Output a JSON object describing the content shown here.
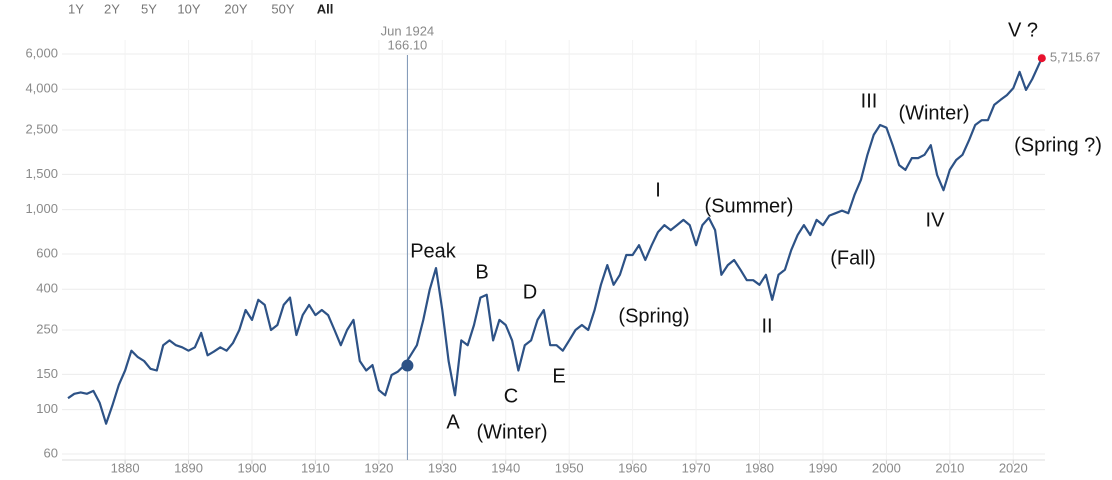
{
  "chart_data": {
    "type": "line",
    "range_buttons": [
      "1Y",
      "2Y",
      "5Y",
      "10Y",
      "20Y",
      "50Y",
      "All"
    ],
    "active_range": 6,
    "log_scale": true,
    "grid": true,
    "color": "#2d5286",
    "xlim": [
      1871,
      2025
    ],
    "xticks": [
      1880,
      1890,
      1900,
      1910,
      1920,
      1930,
      1940,
      1950,
      1960,
      1970,
      1980,
      1990,
      2000,
      2010,
      2020
    ],
    "ylim": [
      60,
      6000
    ],
    "yticks": [
      60,
      100,
      150,
      250,
      400,
      600,
      {
        "value": 1000,
        "label": "1,000"
      },
      {
        "value": 1500,
        "label": "1,500"
      },
      {
        "value": 2500,
        "label": "2,500"
      },
      {
        "value": 4000,
        "label": "4,000"
      },
      {
        "value": 6000,
        "label": "6,000"
      }
    ],
    "x": [
      1871,
      1872,
      1873,
      1874,
      1875,
      1876,
      1877,
      1878,
      1879,
      1880,
      1881,
      1882,
      1883,
      1884,
      1885,
      1886,
      1887,
      1888,
      1889,
      1890,
      1891,
      1892,
      1893,
      1894,
      1895,
      1896,
      1897,
      1898,
      1899,
      1900,
      1901,
      1902,
      1903,
      1904,
      1905,
      1906,
      1907,
      1908,
      1909,
      1910,
      1911,
      1912,
      1913,
      1914,
      1915,
      1916,
      1917,
      1918,
      1919,
      1920,
      1921,
      1922,
      1923,
      1924,
      1925,
      1926,
      1927,
      1928,
      1929,
      1930,
      1931,
      1932,
      1933,
      1934,
      1935,
      1936,
      1937,
      1938,
      1939,
      1940,
      1941,
      1942,
      1943,
      1944,
      1945,
      1946,
      1947,
      1948,
      1949,
      1950,
      1951,
      1952,
      1953,
      1954,
      1955,
      1956,
      1957,
      1958,
      1959,
      1960,
      1961,
      1962,
      1963,
      1964,
      1965,
      1966,
      1967,
      1968,
      1969,
      1970,
      1971,
      1972,
      1973,
      1974,
      1975,
      1976,
      1977,
      1978,
      1979,
      1980,
      1981,
      1982,
      1983,
      1984,
      1985,
      1986,
      1987,
      1988,
      1989,
      1990,
      1991,
      1992,
      1993,
      1994,
      1995,
      1996,
      1997,
      1998,
      1999,
      2000,
      2001,
      2002,
      2003,
      2004,
      2005,
      2006,
      2007,
      2008,
      2009,
      2010,
      2011,
      2012,
      2013,
      2014,
      2015,
      2016,
      2017,
      2018,
      2019,
      2020,
      2021,
      2022,
      2023,
      2024.5
    ],
    "values": [
      114,
      120,
      122,
      120,
      124,
      108,
      85,
      105,
      133,
      157,
      197,
      183,
      175,
      160,
      157,
      210,
      222,
      210,
      205,
      197,
      205,
      242,
      187,
      195,
      205,
      197,
      215,
      250,
      315,
      281,
      354,
      334,
      250,
      265,
      334,
      363,
      236,
      297,
      334,
      297,
      315,
      297,
      250,
      210,
      250,
      281,
      175,
      157,
      167,
      125,
      118,
      149,
      155,
      166,
      187,
      210,
      281,
      396,
      510,
      315,
      175,
      118,
      222,
      210,
      265,
      363,
      375,
      222,
      281,
      265,
      222,
      157,
      210,
      222,
      281,
      315,
      210,
      210,
      197,
      222,
      250,
      265,
      250,
      315,
      421,
      528,
      421,
      472,
      593,
      593,
      664,
      560,
      664,
      772,
      837,
      790,
      837,
      888,
      837,
      664,
      837,
      910,
      790,
      472,
      528,
      560,
      500,
      444,
      444,
      421,
      472,
      354,
      472,
      500,
      627,
      746,
      837,
      746,
      888,
      837,
      934,
      960,
      989,
      960,
      1191,
      1411,
      1878,
      2363,
      2650,
      2570,
      2100,
      1670,
      1580,
      1810,
      1810,
      1880,
      2100,
      1490,
      1250,
      1580,
      1770,
      1880,
      2214,
      2650,
      2800,
      2800,
      3340,
      3540,
      3740,
      4050,
      4880,
      3970,
      4500,
      5715.67
    ],
    "crosshair": {
      "date": "Jun 1924",
      "x": 1924.5,
      "y": 166.1,
      "y_label": "166.10"
    },
    "last_value": {
      "x": 2024.5,
      "value": 5715.67,
      "label": "5,715.67",
      "color": "#e8112d"
    },
    "annotations": [
      "Peak",
      "A",
      "B",
      "C",
      "(Winter)",
      "D",
      "E",
      "(Spring)",
      "I",
      "(Summer)",
      "II",
      "(Fall)",
      "III",
      "(Winter)",
      "IV",
      "V ?",
      "(Spring ?)"
    ]
  }
}
